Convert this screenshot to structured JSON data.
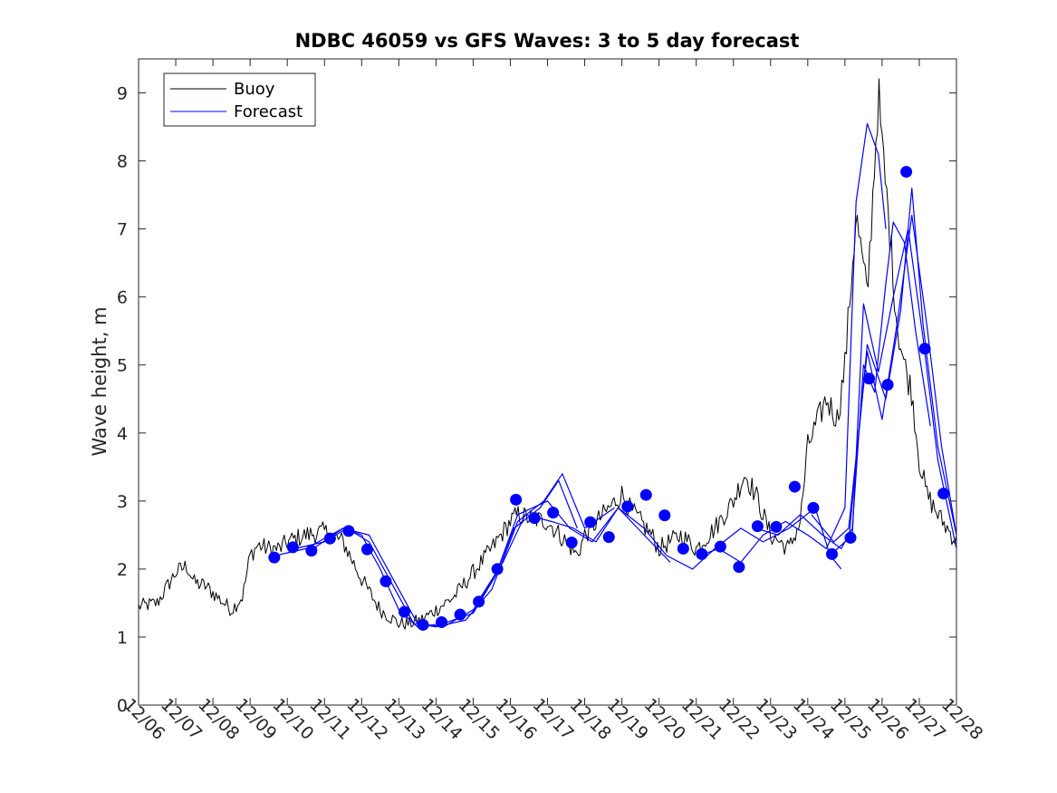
{
  "chart_data": {
    "type": "line",
    "title": "NDBC 46059 vs GFS Waves: 3 to 5 day forecast",
    "xlabel": "",
    "ylabel": "Wave height, m",
    "x_unit": "day",
    "x_ticks": [
      "12/06",
      "12/07",
      "12/08",
      "12/09",
      "12/10",
      "12/11",
      "12/12",
      "12/13",
      "12/14",
      "12/15",
      "12/16",
      "12/17",
      "12/18",
      "12/19",
      "12/20",
      "12/21",
      "12/22",
      "12/23",
      "12/24",
      "12/25",
      "12/26",
      "12/27",
      "12/28"
    ],
    "xlim": [
      "12/06",
      "12/28"
    ],
    "ylim": [
      0,
      9.5
    ],
    "y_ticks": [
      0,
      1,
      2,
      3,
      4,
      5,
      6,
      7,
      8,
      9
    ],
    "grid": false,
    "legend_position": "top-left",
    "colors": {
      "buoy": "#000000",
      "forecast": "#0000ff",
      "markers": "#0000ff"
    },
    "legend": [
      {
        "name": "Buoy",
        "color": "#000000"
      },
      {
        "name": "Forecast",
        "color": "#0000ff"
      }
    ],
    "buoy_anchor_x_days": [
      0,
      0.5,
      1,
      1.3,
      1.5,
      1.8,
      2,
      2.3,
      2.5,
      2.8,
      3,
      3.2,
      3.5,
      3.8,
      4,
      4.5,
      5,
      5.5,
      6,
      6.5,
      7,
      7.3,
      7.6,
      8,
      8.5,
      9,
      9.5,
      10,
      10.2,
      10.5,
      11,
      11.5,
      11.8,
      12,
      12.5,
      13,
      13.2,
      13.5,
      13.8,
      14,
      14.3,
      14.6,
      15,
      15.5,
      16,
      16.3,
      16.6,
      17,
      17.5,
      17.8,
      18,
      18.5,
      18.8,
      19,
      19.3,
      19.6,
      19.9,
      20,
      20.2,
      20.4,
      20.6,
      20.8,
      21,
      21.2,
      21.5,
      22
    ],
    "buoy_anchor_y": [
      1.45,
      1.5,
      1.95,
      2.05,
      1.8,
      1.75,
      1.65,
      1.5,
      1.4,
      1.6,
      2.2,
      2.35,
      2.3,
      2.3,
      2.4,
      2.5,
      2.55,
      2.4,
      1.85,
      1.4,
      1.2,
      1.2,
      1.25,
      1.4,
      1.6,
      1.95,
      2.3,
      2.7,
      2.8,
      2.75,
      2.7,
      2.4,
      2.2,
      2.5,
      2.8,
      3.1,
      2.9,
      2.7,
      2.5,
      2.3,
      2.4,
      2.5,
      2.3,
      2.6,
      3.0,
      3.4,
      3.1,
      2.5,
      2.3,
      2.7,
      3.8,
      4.5,
      4.2,
      5.0,
      7.2,
      6.0,
      9.0,
      8.2,
      7.0,
      5.6,
      5.0,
      4.6,
      3.6,
      3.1,
      2.8,
      2.4
    ],
    "forecast_dots": {
      "x_days": [
        3.65,
        4.15,
        4.65,
        5.15,
        5.65,
        6.15,
        6.65,
        7.15,
        7.65,
        8.15,
        8.65,
        9.15,
        9.65,
        10.15,
        10.65,
        11.15,
        11.65,
        12.15,
        12.65,
        13.15,
        13.65,
        14.15,
        14.65,
        15.15,
        15.65,
        16.15,
        16.65,
        17.15,
        17.65,
        18.15,
        18.65,
        19.15,
        19.65,
        20.15,
        20.65,
        21.15,
        21.65
      ],
      "y": [
        2.17,
        2.32,
        2.27,
        2.45,
        2.56,
        2.29,
        1.82,
        1.37,
        1.18,
        1.22,
        1.33,
        1.52,
        2.0,
        3.02,
        2.75,
        2.83,
        2.39,
        2.69,
        2.47,
        2.92,
        3.09,
        2.79,
        2.3,
        2.22,
        2.33,
        2.03,
        2.63,
        2.62,
        3.21,
        2.9,
        2.22,
        2.46,
        4.8,
        4.71,
        7.84,
        5.24,
        3.11
      ]
    },
    "forecast_lines": [
      {
        "x_days": [
          3.7,
          4.5,
          5.5,
          6.0,
          6.5,
          7.0,
          7.5,
          8.2,
          9.0,
          9.6,
          10.1,
          10.8,
          11.3,
          11.8
        ],
        "y": [
          2.2,
          2.3,
          2.6,
          2.5,
          2.0,
          1.4,
          1.15,
          1.2,
          1.35,
          1.9,
          2.6,
          2.9,
          3.3,
          2.6
        ]
      },
      {
        "x_days": [
          4.2,
          5.0,
          5.6,
          6.2,
          6.8,
          7.4,
          8.0,
          8.8,
          9.5,
          10.2,
          10.9,
          11.4,
          12.0,
          12.8
        ],
        "y": [
          2.3,
          2.4,
          2.6,
          2.4,
          1.8,
          1.2,
          1.15,
          1.25,
          1.7,
          2.7,
          3.0,
          3.4,
          2.6,
          2.9
        ]
      },
      {
        "x_days": [
          4.7,
          5.5,
          6.2,
          6.9,
          7.5,
          8.2,
          9.0,
          9.6,
          10.2,
          11.0,
          11.6,
          12.2,
          12.9,
          13.6,
          14.3
        ],
        "y": [
          2.3,
          2.6,
          2.5,
          1.8,
          1.2,
          1.15,
          1.4,
          1.9,
          2.8,
          3.0,
          2.6,
          2.4,
          2.9,
          2.5,
          2.1
        ]
      },
      {
        "x_days": [
          9.1,
          9.8,
          10.4,
          11.1,
          11.7,
          12.3,
          12.9,
          13.6,
          14.2,
          14.9,
          15.5,
          16.2,
          16.8,
          17.5,
          18.2,
          18.6,
          18.9
        ],
        "y": [
          1.5,
          2.1,
          2.8,
          2.7,
          2.6,
          2.4,
          2.9,
          2.6,
          2.2,
          2.0,
          2.3,
          2.6,
          2.4,
          2.6,
          2.9,
          2.2,
          2.0
        ]
      },
      {
        "x_days": [
          15.1,
          15.6,
          16.2,
          16.8,
          17.4,
          18.0,
          18.5,
          19.0,
          19.3,
          19.6,
          19.9,
          20.1
        ],
        "y": [
          2.2,
          2.3,
          2.1,
          2.5,
          2.7,
          2.5,
          2.3,
          2.9,
          7.4,
          8.55,
          8.1,
          7.0
        ]
      },
      {
        "x_days": [
          16.6,
          17.2,
          17.8,
          18.4,
          18.9,
          19.2,
          19.5,
          19.8,
          20.1,
          20.3,
          20.6,
          20.9,
          21.3
        ],
        "y": [
          2.6,
          2.5,
          2.8,
          2.5,
          2.3,
          2.6,
          5.0,
          4.6,
          6.2,
          7.1,
          6.8,
          5.5,
          4.1
        ]
      },
      {
        "x_days": [
          18.1,
          18.7,
          19.1,
          19.6,
          20.0,
          20.4,
          20.8,
          21.2,
          21.6,
          22.0
        ],
        "y": [
          2.8,
          2.4,
          2.6,
          5.2,
          4.2,
          5.6,
          7.2,
          5.6,
          3.8,
          2.5
        ]
      },
      {
        "x_days": [
          18.6,
          19.2,
          19.5,
          19.9,
          20.3,
          20.7,
          21.1,
          21.5,
          22.0
        ],
        "y": [
          2.2,
          2.5,
          5.9,
          4.9,
          6.0,
          7.0,
          5.4,
          3.6,
          2.3
        ]
      },
      {
        "x_days": [
          19.1,
          19.6,
          20.1,
          20.5,
          20.8,
          21.1,
          21.5,
          22.0
        ],
        "y": [
          2.4,
          5.3,
          4.5,
          5.8,
          7.6,
          5.6,
          3.8,
          2.5
        ]
      }
    ]
  }
}
